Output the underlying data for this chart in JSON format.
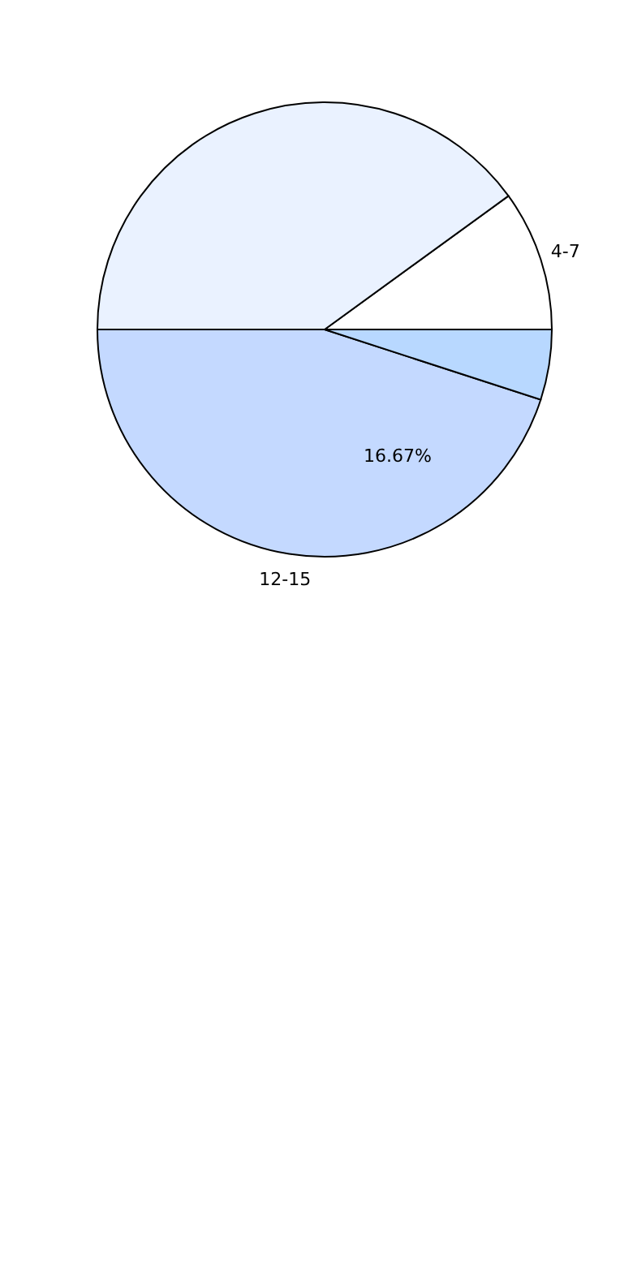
{
  "chart_data": {
    "type": "pie",
    "categories": [
      "4-7",
      null,
      "12-15",
      null
    ],
    "values": [
      10,
      40,
      45,
      5
    ],
    "colors": [
      "#ffffff",
      "#eaf2ff",
      "#c4d9ff",
      "#b8d8ff"
    ],
    "annotations": [
      "16.67%"
    ]
  }
}
